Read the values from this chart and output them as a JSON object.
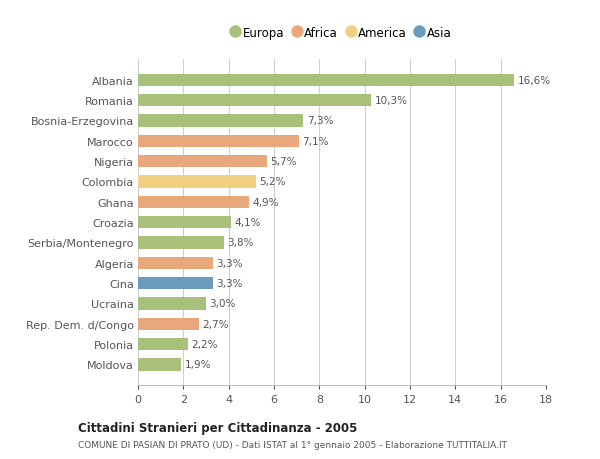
{
  "countries": [
    "Albania",
    "Romania",
    "Bosnia-Erzegovina",
    "Marocco",
    "Nigeria",
    "Colombia",
    "Ghana",
    "Croazia",
    "Serbia/Montenegro",
    "Algeria",
    "Cina",
    "Ucraina",
    "Rep. Dem. d/Congo",
    "Polonia",
    "Moldova"
  ],
  "values": [
    16.6,
    10.3,
    7.3,
    7.1,
    5.7,
    5.2,
    4.9,
    4.1,
    3.8,
    3.3,
    3.3,
    3.0,
    2.7,
    2.2,
    1.9
  ],
  "labels": [
    "16,6%",
    "10,3%",
    "7,3%",
    "7,1%",
    "5,7%",
    "5,2%",
    "4,9%",
    "4,1%",
    "3,8%",
    "3,3%",
    "3,3%",
    "3,0%",
    "2,7%",
    "2,2%",
    "1,9%"
  ],
  "continents": [
    "Europa",
    "Europa",
    "Europa",
    "Africa",
    "Africa",
    "America",
    "Africa",
    "Europa",
    "Europa",
    "Africa",
    "Asia",
    "Europa",
    "Africa",
    "Europa",
    "Europa"
  ],
  "colors": {
    "Europa": "#a8c07a",
    "Africa": "#e8a87c",
    "America": "#f0d080",
    "Asia": "#6a9bbf"
  },
  "legend_order": [
    "Europa",
    "Africa",
    "America",
    "Asia"
  ],
  "legend_colors": [
    "#a8c07a",
    "#e8a87c",
    "#f0d080",
    "#6a9bbf"
  ],
  "title1": "Cittadini Stranieri per Cittadinanza - 2005",
  "title2": "COMUNE DI PASIAN DI PRATO (UD) - Dati ISTAT al 1° gennaio 2005 - Elaborazione TUTTITALIA.IT",
  "xlim": [
    0,
    18
  ],
  "xticks": [
    0,
    2,
    4,
    6,
    8,
    10,
    12,
    14,
    16,
    18
  ],
  "background_color": "#ffffff",
  "grid_color": "#cccccc"
}
